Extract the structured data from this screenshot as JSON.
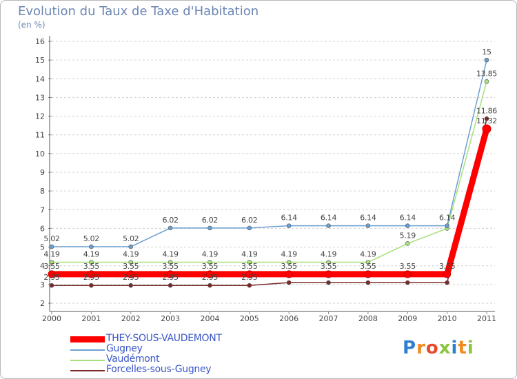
{
  "chart_data": {
    "type": "line",
    "title": "Evolution du Taux de Taxe d'Habitation",
    "ylabel": "(en %)",
    "xlabel": "",
    "categories": [
      "2000",
      "2001",
      "2002",
      "2003",
      "2004",
      "2005",
      "2006",
      "2007",
      "2008",
      "2009",
      "2010",
      "2011"
    ],
    "y_ticks": [
      2,
      3,
      4,
      5,
      6,
      7,
      8,
      9,
      10,
      11,
      12,
      13,
      14,
      15,
      16
    ],
    "ylim": [
      2,
      16
    ],
    "grid": "dashed-horizontal",
    "series": [
      {
        "name": "THEY-SOUS-VAUDEMONT",
        "color": "#ff0000",
        "highlight": true,
        "values": [
          3.55,
          3.55,
          3.55,
          3.55,
          3.55,
          3.55,
          3.55,
          3.55,
          3.55,
          3.55,
          3.55,
          11.32
        ],
        "labels": [
          "3.55",
          "3.55",
          "3.55",
          "3.55",
          "3.55",
          "3.55",
          "3.55",
          "3.55",
          "3.55",
          "3.55",
          "3.55",
          "11.32"
        ]
      },
      {
        "name": "Gugney",
        "color": "#6b9fd0",
        "highlight": false,
        "values": [
          5.02,
          5.02,
          5.02,
          6.02,
          6.02,
          6.02,
          6.14,
          6.14,
          6.14,
          6.14,
          6.14,
          15
        ],
        "labels": [
          "5.02",
          "5.02",
          "5.02",
          "6.02",
          "6.02",
          "6.02",
          "6.14",
          "6.14",
          "6.14",
          "6.14",
          "6.14",
          "15"
        ]
      },
      {
        "name": "Vaudémont",
        "color": "#a6e07a",
        "highlight": false,
        "values": [
          4.19,
          4.19,
          4.19,
          4.19,
          4.19,
          4.19,
          4.19,
          4.19,
          4.19,
          5.19,
          6.0,
          13.85
        ],
        "labels": [
          "4.19",
          "4.19",
          "4.19",
          "4.19",
          "4.19",
          "4.19",
          "4.19",
          "4.19",
          "4.19",
          "5.19",
          "",
          "13.85"
        ]
      },
      {
        "name": "Forcelles-sous-Gugney",
        "color": "#7a2a2a",
        "highlight": false,
        "values": [
          2.95,
          2.95,
          2.95,
          2.95,
          2.95,
          2.95,
          3.1,
          3.1,
          3.1,
          3.1,
          3.1,
          11.86
        ],
        "labels": [
          "2.95",
          "2.95",
          "2.95",
          "2.95",
          "2.95",
          "2.95",
          "",
          "",
          "",
          "",
          "",
          "11.86"
        ]
      }
    ]
  },
  "logo": {
    "text": "Proxiti",
    "letters": [
      "P",
      "r",
      "o",
      "x",
      "i",
      "t",
      "i"
    ]
  }
}
